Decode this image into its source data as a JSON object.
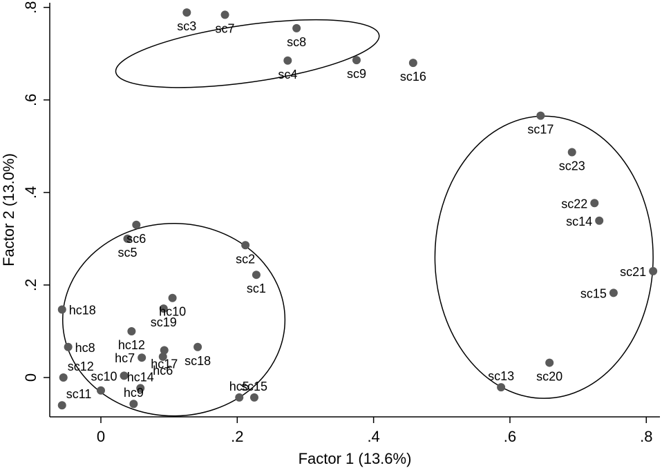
{
  "chart_data": {
    "type": "scatter",
    "title": "",
    "xlabel": "Factor 1 (13.6%)",
    "ylabel": "Factor 2 (13.0%)",
    "xlim": [
      -0.075,
      0.82
    ],
    "ylim": [
      -0.085,
      0.81
    ],
    "xticks": [
      {
        "value": 0,
        "label": "0"
      },
      {
        "value": 0.2,
        "label": ".2"
      },
      {
        "value": 0.4,
        "label": ".4"
      },
      {
        "value": 0.6,
        "label": ".6"
      },
      {
        "value": 0.8,
        "label": ".8"
      }
    ],
    "yticks": [
      {
        "value": 0,
        "label": "0"
      },
      {
        "value": 0.2,
        "label": ".2"
      },
      {
        "value": 0.4,
        "label": ".4"
      },
      {
        "value": 0.6,
        "label": ".6"
      },
      {
        "value": 0.8,
        "label": ".8"
      }
    ],
    "grid": false,
    "legend": "none",
    "marker_color": "#5a5a5a",
    "points": [
      {
        "label": "sc3",
        "x": 0.126,
        "y": 0.789,
        "pos": "below"
      },
      {
        "label": "sc7",
        "x": 0.182,
        "y": 0.784,
        "pos": "below"
      },
      {
        "label": "sc8",
        "x": 0.287,
        "y": 0.755,
        "pos": "below"
      },
      {
        "label": "sc4",
        "x": 0.274,
        "y": 0.685,
        "pos": "below"
      },
      {
        "label": "sc9",
        "x": 0.375,
        "y": 0.686,
        "pos": "below"
      },
      {
        "label": "sc16",
        "x": 0.458,
        "y": 0.68,
        "pos": "below"
      },
      {
        "label": "sc17",
        "x": 0.645,
        "y": 0.566,
        "pos": "below"
      },
      {
        "label": "sc23",
        "x": 0.691,
        "y": 0.487,
        "pos": "below"
      },
      {
        "label": "sc22",
        "x": 0.724,
        "y": 0.377,
        "pos": "left"
      },
      {
        "label": "sc14",
        "x": 0.731,
        "y": 0.339,
        "pos": "left"
      },
      {
        "label": "sc21",
        "x": 0.81,
        "y": 0.23,
        "pos": "left"
      },
      {
        "label": "sc15",
        "x": 0.752,
        "y": 0.183,
        "pos": "left"
      },
      {
        "label": "sc13",
        "x": 0.587,
        "y": -0.021,
        "pos": "above"
      },
      {
        "label": "sc20",
        "x": 0.658,
        "y": 0.032,
        "pos": "below"
      },
      {
        "label": "sc6",
        "x": 0.052,
        "y": 0.33,
        "pos": "below"
      },
      {
        "label": "sc5",
        "x": 0.039,
        "y": 0.3,
        "pos": "below"
      },
      {
        "label": "sc2",
        "x": 0.212,
        "y": 0.286,
        "pos": "below"
      },
      {
        "label": "sc1",
        "x": 0.228,
        "y": 0.222,
        "pos": "below"
      },
      {
        "label": "hc18",
        "x": -0.057,
        "y": 0.147,
        "pos": "right"
      },
      {
        "label": "hc10",
        "x": 0.105,
        "y": 0.172,
        "pos": "below"
      },
      {
        "label": "sc19",
        "x": 0.092,
        "y": 0.149,
        "pos": "below"
      },
      {
        "label": "hc8",
        "x": -0.048,
        "y": 0.066,
        "pos": "right"
      },
      {
        "label": "hc12",
        "x": 0.045,
        "y": 0.1,
        "pos": "below"
      },
      {
        "label": "sc18",
        "x": 0.142,
        "y": 0.066,
        "pos": "below"
      },
      {
        "label": "hc17",
        "x": 0.093,
        "y": 0.059,
        "pos": "below"
      },
      {
        "label": "hc7",
        "x": 0.06,
        "y": 0.043,
        "pos": "left"
      },
      {
        "label": "hc6",
        "x": 0.091,
        "y": 0.045,
        "pos": "below"
      },
      {
        "label": "sc12",
        "x": -0.055,
        "y": 0.0,
        "pos": "above-right"
      },
      {
        "label": "sc10",
        "x": 0.034,
        "y": 0.004,
        "pos": "left"
      },
      {
        "label": "hc14",
        "x": 0.058,
        "y": -0.023,
        "pos": "above"
      },
      {
        "label": "hc9",
        "x": 0.048,
        "y": -0.057,
        "pos": "above"
      },
      {
        "label": "sc11",
        "x": -0.057,
        "y": -0.06,
        "pos": "above-right"
      },
      {
        "label": "",
        "x": 0.0,
        "y": -0.028,
        "pos": "none"
      },
      {
        "label": "hc5",
        "x": 0.203,
        "y": -0.043,
        "pos": "above"
      },
      {
        "label": "sc15",
        "x": 0.225,
        "y": -0.043,
        "pos": "above"
      }
    ],
    "clusters": [
      {
        "cx": 0.215,
        "cy": 0.7,
        "rx": 0.195,
        "ry": 0.062,
        "angle": -8
      },
      {
        "cx": 0.107,
        "cy": 0.125,
        "rx": 0.163,
        "ry": 0.208,
        "angle": 0
      },
      {
        "cx": 0.65,
        "cy": 0.26,
        "rx": 0.16,
        "ry": 0.305,
        "angle": 0
      }
    ]
  }
}
